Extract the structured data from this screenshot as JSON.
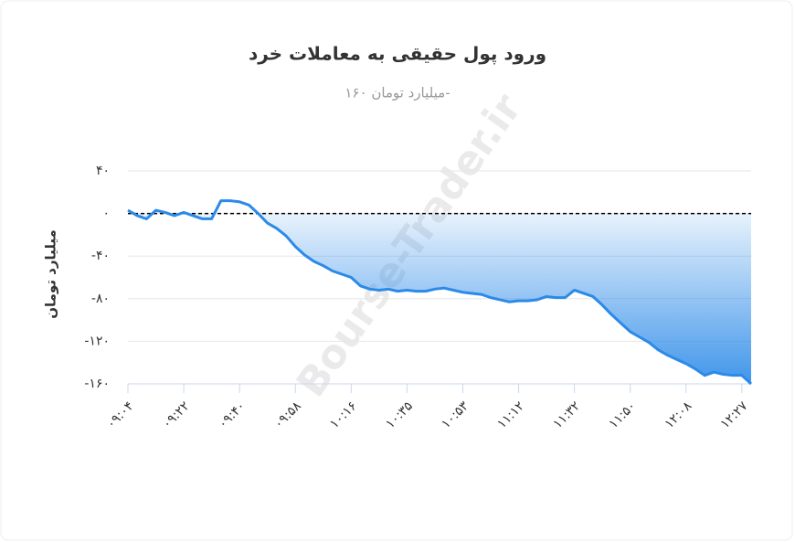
{
  "chart_data": {
    "type": "area-line",
    "title": "ورود پول حقیقی به معاملات خرد",
    "subtitle": "میلیارد تومان ۱۶۰-",
    "y_label": "میلیارد تومان",
    "watermark": "Bourse-Trader.ir",
    "color": "#2b8ae8",
    "categories": [
      "۰۹:۰۴",
      null,
      null,
      null,
      null,
      null,
      "۰۹:۲۲",
      null,
      null,
      null,
      null,
      null,
      "۰۹:۴۰",
      null,
      null,
      null,
      null,
      null,
      "۰۹:۵۸",
      null,
      null,
      null,
      null,
      null,
      "۱۰:۱۶",
      null,
      null,
      null,
      null,
      null,
      "۱۰:۳۵",
      null,
      null,
      null,
      null,
      null,
      "۱۰:۵۳",
      null,
      null,
      null,
      null,
      null,
      "۱۱:۱۲",
      null,
      null,
      null,
      null,
      null,
      "۱۱:۳۲",
      null,
      null,
      null,
      null,
      null,
      "۱۱:۵۰",
      null,
      null,
      null,
      null,
      null,
      "۱۲:۰۸",
      null,
      null,
      null,
      null,
      null,
      "۱۲:۲۷",
      null
    ],
    "values": [
      3,
      -2,
      -5,
      3,
      1,
      -2,
      1,
      -2,
      -5,
      -5,
      12,
      12,
      11,
      8,
      0,
      -9,
      -14,
      -21,
      -31,
      -39,
      -45,
      -49,
      -54,
      -57,
      -60,
      -68,
      -71,
      -72,
      -71,
      -73,
      -72,
      -73,
      -73,
      -71,
      -70,
      -72,
      -74,
      -75,
      -76,
      -79,
      -81,
      -83,
      -82,
      -82,
      -81,
      -78,
      -79,
      -79,
      -72,
      -75,
      -78,
      -86,
      -95,
      -103,
      -111,
      -116,
      -121,
      -128,
      -133,
      -137,
      -141,
      -146,
      -152,
      -149,
      -151,
      -152,
      -152,
      -160
    ],
    "ylim": [
      -160,
      40
    ],
    "yticks": [
      {
        "value": 40,
        "label": "۴۰"
      },
      {
        "value": 0,
        "label": "۰"
      },
      {
        "value": -40,
        "label": "-۴۰"
      },
      {
        "value": -80,
        "label": "-۸۰"
      },
      {
        "value": -120,
        "label": "-۱۲۰"
      },
      {
        "value": -160,
        "label": "-۱۶۰"
      }
    ],
    "grid": true
  }
}
